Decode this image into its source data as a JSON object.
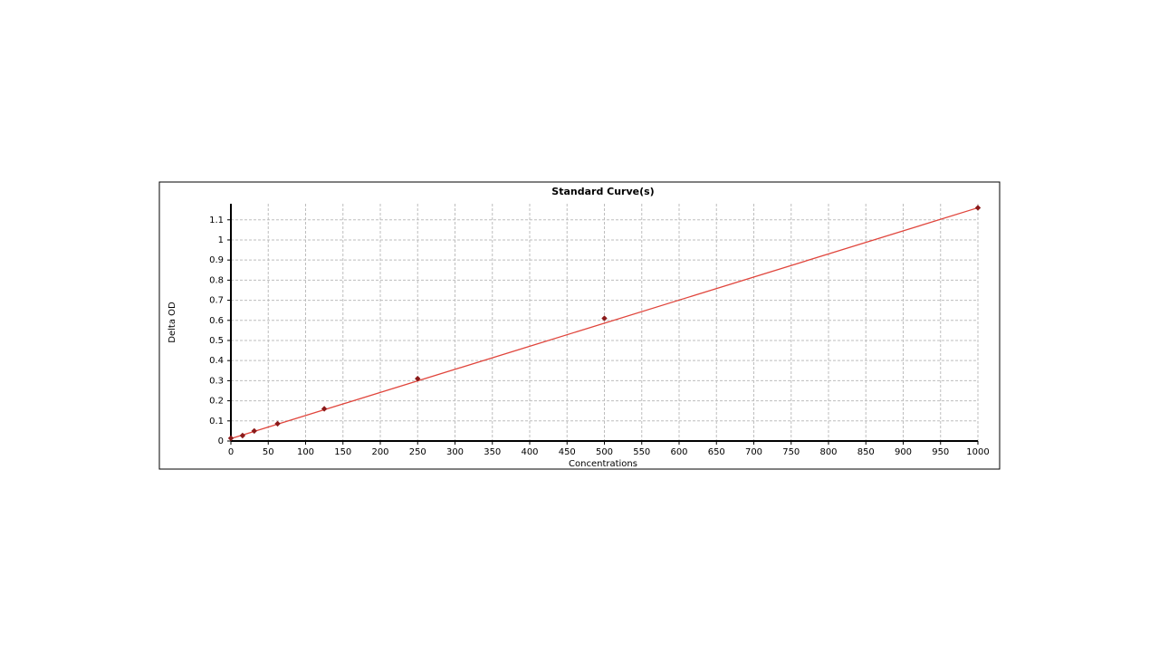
{
  "chart_data": {
    "type": "scatter",
    "title": "Standard Curve(s)",
    "x_label": "Concentrations",
    "y_label": "Delta OD",
    "x": [
      0,
      15.6,
      31.25,
      62.5,
      125,
      250,
      500,
      1000
    ],
    "values": [
      0.014,
      0.027,
      0.05,
      0.086,
      0.16,
      0.31,
      0.61,
      1.16
    ],
    "color": "#8b1a1a",
    "fit": {
      "x": [
        0,
        1000
      ],
      "y": [
        0.012,
        1.16
      ],
      "color": "#e0453c"
    },
    "xlim": [
      0,
      1000
    ],
    "xticks": [
      0,
      50,
      100,
      150,
      200,
      250,
      300,
      350,
      400,
      450,
      500,
      550,
      600,
      650,
      700,
      750,
      800,
      850,
      900,
      950,
      1000
    ],
    "ylim": [
      0,
      1.18
    ],
    "yticks": [
      0,
      0.1,
      0.2,
      0.3,
      0.4,
      0.5,
      0.6,
      0.7,
      0.8,
      0.9,
      1,
      1.1
    ],
    "grid": true
  }
}
